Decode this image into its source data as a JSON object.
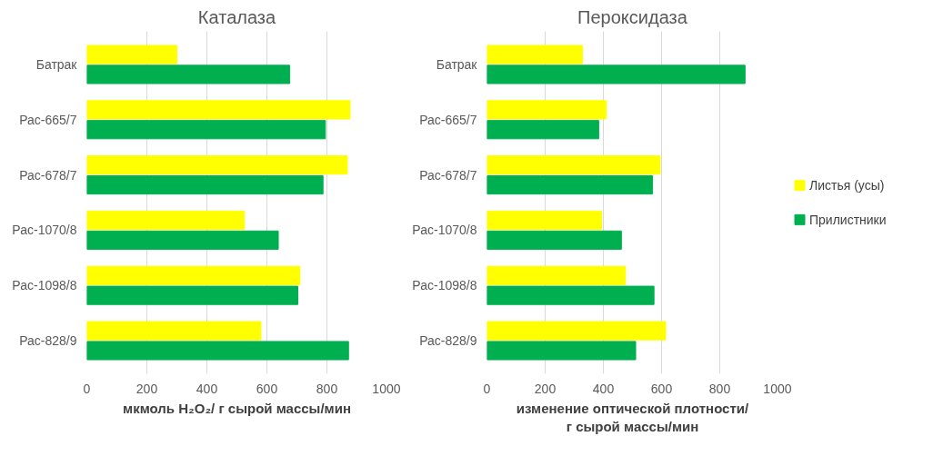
{
  "chart_data": [
    {
      "type": "bar",
      "orientation": "horizontal",
      "title": "Каталаза",
      "xlabel": "мкмоль H₂O₂/ г сырой массы/мин",
      "categories": [
        "Батрак",
        "Рас-665/7",
        "Рас-678/7",
        "Рас-1070/8",
        "Рас-1098/8",
        "Рас-828/9"
      ],
      "series": [
        {
          "color": "#ffff00",
          "values": [
            300,
            877,
            868,
            525,
            710,
            580
          ]
        },
        {
          "color": "#00b050",
          "values": [
            676,
            795,
            787,
            638,
            703,
            872
          ]
        }
      ],
      "xlim": [
        0,
        1000
      ],
      "xticks": [
        0,
        200,
        400,
        600,
        800,
        1000
      ],
      "grid": "x"
    },
    {
      "type": "bar",
      "orientation": "horizontal",
      "title": "Пероксидаза",
      "xlabel": "изменение оптической плотности/\nг сырой массы/мин",
      "categories": [
        "Батрак",
        "Рас-665/7",
        "Рас-678/7",
        "Рас-1070/8",
        "Рас-1098/8",
        "Рас-828/9"
      ],
      "series": [
        {
          "name": "Листья (усы)",
          "color": "#ffff00",
          "values": [
            328,
            410,
            595,
            394,
            476,
            614
          ]
        },
        {
          "name": "Прилистники",
          "color": "#00b050",
          "values": [
            887,
            384,
            569,
            462,
            574,
            511
          ]
        }
      ],
      "xlim": [
        0,
        1000
      ],
      "xticks": [
        0,
        200,
        400,
        600,
        800,
        1000
      ],
      "grid": "x",
      "legend": "right"
    }
  ]
}
